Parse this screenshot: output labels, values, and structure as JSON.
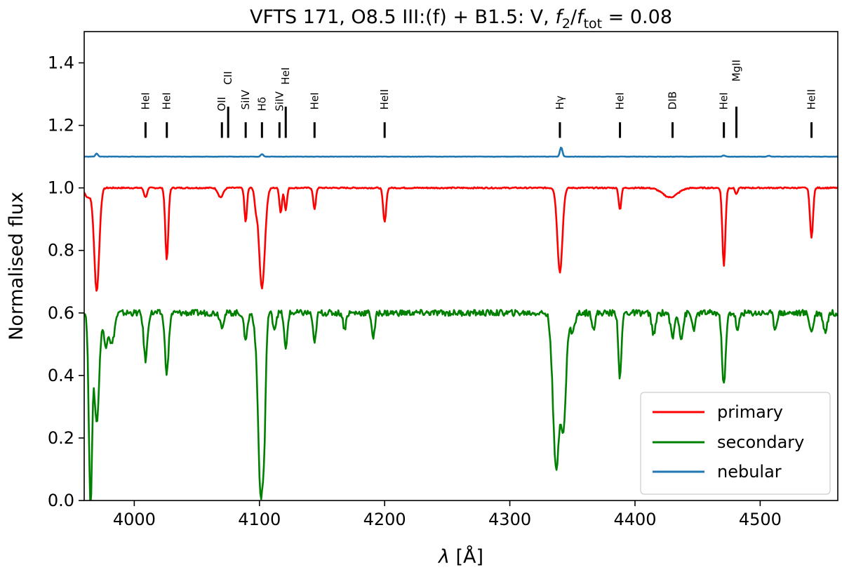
{
  "chart_data": {
    "type": "line",
    "title": {
      "prefix": "VFTS 171, O8.5 III:(f) + B1.5: V, ",
      "f": "f",
      "sub2": "2",
      "slash": "/",
      "subtot": "tot",
      "suffix": " = 0.08"
    },
    "xlabel": {
      "lambda": "λ",
      "unit": " [Å]"
    },
    "ylabel": "Normalised flux",
    "xlim": [
      3960,
      4562
    ],
    "ylim": [
      0.0,
      1.5
    ],
    "xticks": [
      4000,
      4100,
      4200,
      4300,
      4400,
      4500
    ],
    "yticks": [
      0.0,
      0.2,
      0.4,
      0.6,
      0.8,
      1.0,
      1.2,
      1.4
    ],
    "grid": false,
    "legend": {
      "position": "bottom-right"
    },
    "series": [
      {
        "name": "primary",
        "color": "#ff0000",
        "continuum": 1.0,
        "noise": 0.002,
        "lines": [
          [
            3963,
            0.03,
            2.5
          ],
          [
            3970,
            0.33,
            2.0
          ],
          [
            4009,
            0.03,
            1.2
          ],
          [
            4026,
            0.23,
            1.2
          ],
          [
            4069,
            0.03,
            2.0
          ],
          [
            4089,
            0.11,
            1.0
          ],
          [
            4097,
            0.05,
            1.0
          ],
          [
            4102,
            0.32,
            2.3
          ],
          [
            4117,
            0.08,
            1.0
          ],
          [
            4121,
            0.07,
            1.0
          ],
          [
            4144,
            0.07,
            1.0
          ],
          [
            4200,
            0.11,
            1.2
          ],
          [
            4340,
            0.27,
            2.0
          ],
          [
            4388,
            0.07,
            1.0
          ],
          [
            4428,
            0.03,
            6.0
          ],
          [
            4471,
            0.25,
            1.2
          ],
          [
            4481,
            0.02,
            1.0
          ],
          [
            4541,
            0.16,
            1.2
          ]
        ]
      },
      {
        "name": "secondary",
        "color": "#008000",
        "continuum": 0.6,
        "noise": 0.01,
        "lines": [
          [
            3965,
            0.6,
            1.3
          ],
          [
            3970,
            0.35,
            2.0
          ],
          [
            3977,
            0.1,
            1.5
          ],
          [
            3982,
            0.1,
            2.0
          ],
          [
            4009,
            0.15,
            1.5
          ],
          [
            4026,
            0.19,
            1.5
          ],
          [
            4070,
            0.04,
            1.5
          ],
          [
            4089,
            0.08,
            1.5
          ],
          [
            4097,
            0.04,
            1.5
          ],
          [
            4101,
            0.58,
            2.0
          ],
          [
            4104,
            0.25,
            1.2
          ],
          [
            4112,
            0.05,
            1.2
          ],
          [
            4121,
            0.12,
            1.2
          ],
          [
            4144,
            0.1,
            1.2
          ],
          [
            4168,
            0.05,
            1.2
          ],
          [
            4191,
            0.08,
            1.2
          ],
          [
            4337,
            0.5,
            2.5
          ],
          [
            4343,
            0.35,
            2.0
          ],
          [
            4350,
            0.06,
            2.0
          ],
          [
            4367,
            0.05,
            1.2
          ],
          [
            4388,
            0.21,
            1.2
          ],
          [
            4415,
            0.07,
            1.5
          ],
          [
            4430,
            0.08,
            1.5
          ],
          [
            4437,
            0.08,
            1.5
          ],
          [
            4447,
            0.05,
            1.5
          ],
          [
            4471,
            0.23,
            1.5
          ],
          [
            4482,
            0.06,
            1.2
          ],
          [
            4512,
            0.05,
            1.2
          ],
          [
            4541,
            0.06,
            1.5
          ],
          [
            4552,
            0.06,
            1.5
          ]
        ]
      },
      {
        "name": "nebular",
        "color": "#1f77b4",
        "continuum": 1.1,
        "noise": 0.0005,
        "lines": [
          [
            3970,
            -0.01,
            1.0
          ],
          [
            4102,
            -0.008,
            1.0
          ],
          [
            4341,
            -0.03,
            1.0
          ],
          [
            4471,
            -0.004,
            1.0
          ],
          [
            4507,
            -0.003,
            1.0
          ]
        ]
      }
    ],
    "line_ids": [
      {
        "label": "HeI",
        "x": 4009,
        "tick_top": 1.21,
        "label_y": 1.25
      },
      {
        "label": "HeI",
        "x": 4026,
        "tick_top": 1.21,
        "label_y": 1.25
      },
      {
        "label": "OII",
        "x": 4070,
        "tick_top": 1.21,
        "label_y": 1.245
      },
      {
        "label": "CII",
        "x": 4075,
        "tick_top": 1.26,
        "label_y": 1.33
      },
      {
        "label": "SiIV",
        "x": 4089,
        "tick_top": 1.21,
        "label_y": 1.25
      },
      {
        "label": "Hδ",
        "x": 4102,
        "tick_top": 1.21,
        "label_y": 1.245
      },
      {
        "label": "SiIV",
        "x": 4116,
        "tick_top": 1.21,
        "label_y": 1.245
      },
      {
        "label": "HeI",
        "x": 4121,
        "tick_top": 1.26,
        "label_y": 1.33
      },
      {
        "label": "HeI",
        "x": 4144,
        "tick_top": 1.21,
        "label_y": 1.25
      },
      {
        "label": "HeII",
        "x": 4200,
        "tick_top": 1.21,
        "label_y": 1.25
      },
      {
        "label": "Hγ",
        "x": 4340,
        "tick_top": 1.21,
        "label_y": 1.25
      },
      {
        "label": "HeI",
        "x": 4388,
        "tick_top": 1.21,
        "label_y": 1.25
      },
      {
        "label": "DIB",
        "x": 4430,
        "tick_top": 1.21,
        "label_y": 1.25
      },
      {
        "label": "HeI",
        "x": 4471,
        "tick_top": 1.21,
        "label_y": 1.25
      },
      {
        "label": "MgII",
        "x": 4481,
        "tick_top": 1.26,
        "label_y": 1.34
      },
      {
        "label": "HeII",
        "x": 4541,
        "tick_top": 1.21,
        "label_y": 1.25
      }
    ]
  }
}
